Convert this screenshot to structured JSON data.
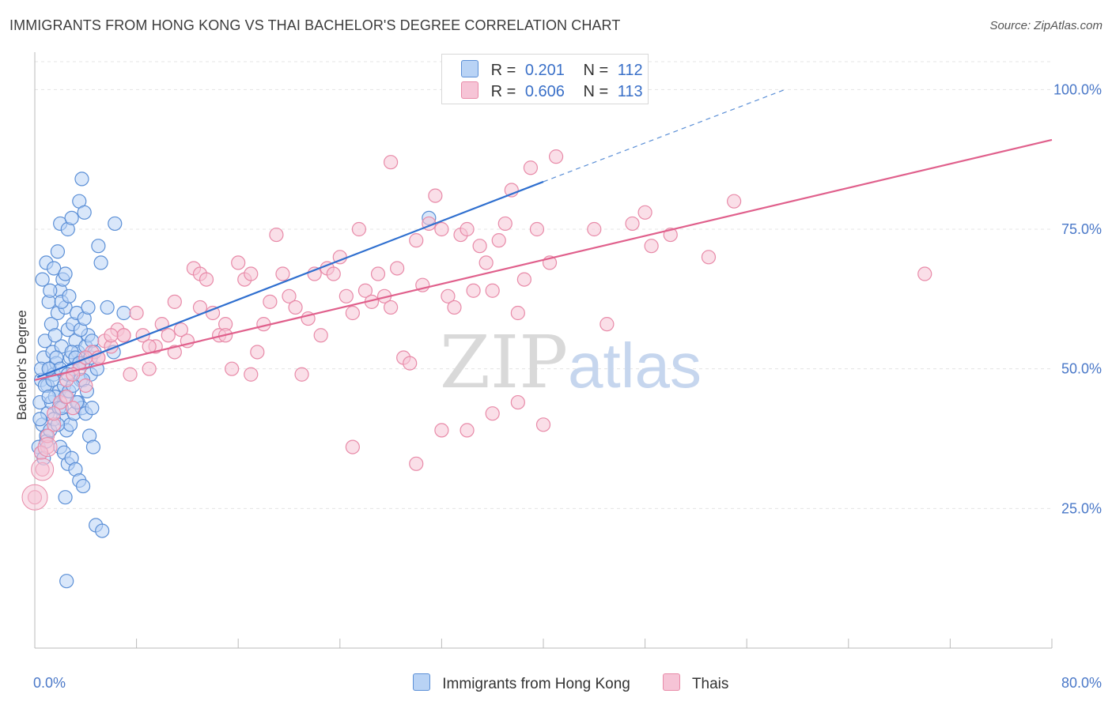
{
  "header": {
    "title": "IMMIGRANTS FROM HONG KONG VS THAI BACHELOR'S DEGREE CORRELATION CHART",
    "source": "Source: ZipAtlas.com"
  },
  "legend": {
    "rows": [
      {
        "r_label": "R =",
        "r_value": "0.201",
        "n_label": "N =",
        "n_value": "112"
      },
      {
        "r_label": "R =",
        "r_value": "0.606",
        "n_label": "N =",
        "n_value": "113"
      }
    ]
  },
  "bottom_legend": [
    "Immigrants from Hong Kong",
    "Thais"
  ],
  "watermark": {
    "zip": "ZIP",
    "atlas": "atlas"
  },
  "colors": {
    "blue_fill": "#b9d3f5",
    "blue_stroke": "#5b8fd6",
    "blue_line": "#2f6fcf",
    "pink_fill": "#f6c4d6",
    "pink_stroke": "#e88aa8",
    "pink_line": "#e0608c"
  },
  "chart_data": {
    "type": "scatter",
    "title": "IMMIGRANTS FROM HONG KONG VS THAI BACHELOR'S DEGREE CORRELATION CHART",
    "xlabel": "",
    "ylabel": "Bachelor's Degree",
    "xlim": [
      0,
      80
    ],
    "ylim": [
      0,
      105
    ],
    "x_tick_labels": [
      "0.0%",
      "80.0%"
    ],
    "y_ticks": [
      25,
      50,
      75,
      100
    ],
    "y_tick_labels": [
      "25.0%",
      "50.0%",
      "75.0%",
      "100.0%"
    ],
    "grid": true,
    "legend_position": "top-center",
    "series": [
      {
        "name": "Immigrants from Hong Kong",
        "r": 0.201,
        "n": 112,
        "trend": {
          "x0": 0.2,
          "y0": 48.5,
          "x1": 40,
          "y1": 83.5,
          "dashed_to_x": 59,
          "dashed_to_y": 100
        },
        "points": [
          [
            0.5,
            48
          ],
          [
            0.7,
            52
          ],
          [
            0.8,
            55
          ],
          [
            1,
            47
          ],
          [
            1.2,
            50
          ],
          [
            1.4,
            53
          ],
          [
            1.5,
            49
          ],
          [
            1.7,
            51
          ],
          [
            1.9,
            46
          ],
          [
            2.1,
            54
          ],
          [
            0.4,
            44
          ],
          [
            0.6,
            40
          ],
          [
            0.9,
            38
          ],
          [
            1.1,
            62
          ],
          [
            1.3,
            58
          ],
          [
            1.6,
            56
          ],
          [
            1.8,
            60
          ],
          [
            2,
            64
          ],
          [
            2.2,
            66
          ],
          [
            2.4,
            61
          ],
          [
            2.6,
            57
          ],
          [
            2.8,
            52
          ],
          [
            3,
            50
          ],
          [
            3.2,
            55
          ],
          [
            3.4,
            53
          ],
          [
            3.6,
            48
          ],
          [
            3.8,
            51
          ],
          [
            4,
            54
          ],
          [
            4.2,
            56
          ],
          [
            4.4,
            49
          ],
          [
            0.6,
            66
          ],
          [
            0.9,
            69
          ],
          [
            1.2,
            64
          ],
          [
            1.5,
            68
          ],
          [
            1.8,
            71
          ],
          [
            2.1,
            62
          ],
          [
            2.4,
            67
          ],
          [
            2.7,
            63
          ],
          [
            3,
            58
          ],
          [
            3.3,
            60
          ],
          [
            3.6,
            57
          ],
          [
            3.9,
            59
          ],
          [
            4.2,
            61
          ],
          [
            4.5,
            55
          ],
          [
            1,
            42
          ],
          [
            1.3,
            44
          ],
          [
            1.6,
            45
          ],
          [
            1.9,
            43
          ],
          [
            2.2,
            41
          ],
          [
            2.5,
            39
          ],
          [
            2.8,
            40
          ],
          [
            3.1,
            42
          ],
          [
            3.4,
            44
          ],
          [
            3.7,
            43
          ],
          [
            4,
            42
          ],
          [
            4.3,
            38
          ],
          [
            4.6,
            36
          ],
          [
            2,
            36
          ],
          [
            2.3,
            35
          ],
          [
            2.6,
            33
          ],
          [
            2.9,
            34
          ],
          [
            3.2,
            32
          ],
          [
            3.5,
            30
          ],
          [
            3.8,
            29
          ],
          [
            2.4,
            27
          ],
          [
            4.8,
            22
          ],
          [
            5.3,
            21
          ],
          [
            2.5,
            12
          ],
          [
            2,
            76
          ],
          [
            2.6,
            75
          ],
          [
            2.9,
            77
          ],
          [
            3.5,
            80
          ],
          [
            3.7,
            84
          ],
          [
            3.9,
            78
          ],
          [
            5,
            72
          ],
          [
            5.2,
            69
          ],
          [
            6.3,
            76
          ],
          [
            5.7,
            61
          ],
          [
            7,
            60
          ],
          [
            4.9,
            50
          ],
          [
            0.5,
            50
          ],
          [
            0.8,
            47
          ],
          [
            1.1,
            45
          ],
          [
            1.4,
            48
          ],
          [
            1.7,
            52
          ],
          [
            2,
            50
          ],
          [
            2.3,
            47
          ],
          [
            2.6,
            49
          ],
          [
            2.9,
            53
          ],
          [
            3.2,
            52
          ],
          [
            3.5,
            51
          ],
          [
            3.8,
            48
          ],
          [
            4.1,
            46
          ],
          [
            4.4,
            52
          ],
          [
            4.7,
            53
          ],
          [
            0.3,
            36
          ],
          [
            0.5,
            35
          ],
          [
            0.7,
            34
          ],
          [
            0.9,
            37
          ],
          [
            1.2,
            39
          ],
          [
            1.5,
            41
          ],
          [
            1.8,
            40
          ],
          [
            2.1,
            43
          ],
          [
            2.4,
            45
          ],
          [
            2.7,
            46
          ],
          [
            3,
            47
          ],
          [
            3.3,
            44
          ],
          [
            31,
            77
          ],
          [
            4.5,
            43
          ],
          [
            6.2,
            53
          ],
          [
            1.1,
            50
          ],
          [
            0.4,
            41
          ]
        ]
      },
      {
        "name": "Thais",
        "r": 0.606,
        "n": 113,
        "trend": {
          "x0": 0,
          "y0": 48,
          "x1": 80,
          "y1": 91
        },
        "points": [
          [
            0,
            27
          ],
          [
            0.6,
            32
          ],
          [
            1,
            36
          ],
          [
            1.5,
            40
          ],
          [
            2,
            44
          ],
          [
            2.5,
            48
          ],
          [
            3,
            43
          ],
          [
            3.5,
            50
          ],
          [
            4,
            47
          ],
          [
            4.5,
            53
          ],
          [
            5,
            52
          ],
          [
            5.5,
            55
          ],
          [
            6,
            54
          ],
          [
            6.5,
            57
          ],
          [
            7,
            56
          ],
          [
            7.5,
            49
          ],
          [
            8,
            60
          ],
          [
            8.5,
            56
          ],
          [
            9,
            50
          ],
          [
            9.5,
            54
          ],
          [
            10,
            58
          ],
          [
            10.5,
            56
          ],
          [
            11,
            62
          ],
          [
            11.5,
            57
          ],
          [
            12,
            55
          ],
          [
            12.5,
            68
          ],
          [
            13,
            67
          ],
          [
            13.5,
            66
          ],
          [
            14,
            60
          ],
          [
            14.5,
            56
          ],
          [
            15,
            58
          ],
          [
            15.5,
            50
          ],
          [
            16,
            69
          ],
          [
            16.5,
            66
          ],
          [
            17,
            67
          ],
          [
            17.5,
            53
          ],
          [
            18,
            58
          ],
          [
            18.5,
            62
          ],
          [
            19,
            74
          ],
          [
            19.5,
            67
          ],
          [
            20,
            63
          ],
          [
            20.5,
            61
          ],
          [
            21,
            49
          ],
          [
            21.5,
            59
          ],
          [
            22,
            67
          ],
          [
            22.5,
            56
          ],
          [
            23,
            68
          ],
          [
            23.5,
            67
          ],
          [
            24,
            70
          ],
          [
            24.5,
            63
          ],
          [
            25,
            60
          ],
          [
            25.5,
            75
          ],
          [
            26,
            64
          ],
          [
            26.5,
            62
          ],
          [
            27,
            67
          ],
          [
            27.5,
            63
          ],
          [
            28,
            61
          ],
          [
            28.5,
            68
          ],
          [
            29,
            52
          ],
          [
            29.5,
            51
          ],
          [
            30,
            73
          ],
          [
            30.5,
            65
          ],
          [
            31,
            76
          ],
          [
            31.5,
            81
          ],
          [
            32,
            75
          ],
          [
            32.5,
            63
          ],
          [
            33,
            61
          ],
          [
            33.5,
            74
          ],
          [
            34,
            75
          ],
          [
            34.5,
            64
          ],
          [
            35,
            72
          ],
          [
            35.5,
            69
          ],
          [
            36,
            64
          ],
          [
            36.5,
            73
          ],
          [
            37,
            76
          ],
          [
            37.5,
            82
          ],
          [
            38,
            60
          ],
          [
            38.5,
            66
          ],
          [
            39,
            86
          ],
          [
            39.5,
            75
          ],
          [
            40,
            40
          ],
          [
            40.5,
            69
          ],
          [
            41,
            88
          ],
          [
            44,
            75
          ],
          [
            45,
            58
          ],
          [
            47,
            76
          ],
          [
            48,
            78
          ],
          [
            48.5,
            72
          ],
          [
            50,
            74
          ],
          [
            53,
            70
          ],
          [
            55,
            80
          ],
          [
            70,
            67
          ],
          [
            13,
            61
          ],
          [
            15,
            56
          ],
          [
            17,
            49
          ],
          [
            11,
            53
          ],
          [
            9,
            54
          ],
          [
            7,
            56
          ],
          [
            6,
            56
          ],
          [
            5,
            52
          ],
          [
            4,
            52
          ],
          [
            3,
            49
          ],
          [
            2.5,
            45
          ],
          [
            1.5,
            42
          ],
          [
            1,
            38
          ],
          [
            0.5,
            35
          ],
          [
            36,
            42
          ],
          [
            25,
            36
          ],
          [
            30,
            33
          ],
          [
            28,
            87
          ],
          [
            32,
            39
          ],
          [
            34,
            39
          ],
          [
            38,
            44
          ]
        ]
      }
    ]
  }
}
